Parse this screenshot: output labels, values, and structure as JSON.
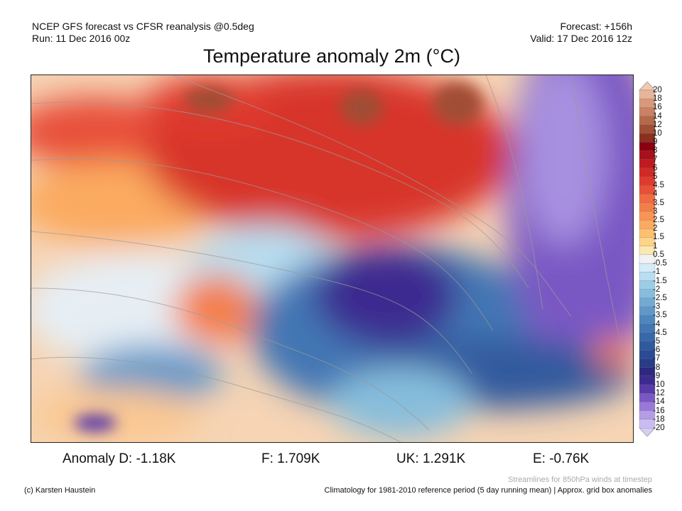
{
  "header": {
    "model_line": "NCEP GFS forecast vs CFSR reanalysis @0.5deg",
    "run_line": "Run: 11 Dec 2016 00z",
    "forecast_line": "Forecast: +156h",
    "valid_line": "Valid: 17 Dec 2016 12z",
    "title": "Temperature anomaly 2m (°C)"
  },
  "colorbar": {
    "labels": [
      "20",
      "18",
      "16",
      "14",
      "12",
      "10",
      "9",
      "8",
      "7",
      "6",
      "5",
      "4.5",
      "4",
      "3.5",
      "3",
      "2.5",
      "2",
      "1.5",
      "1",
      "0.5",
      "-0.5",
      "-1",
      "-1.5",
      "-2",
      "-2.5",
      "-3",
      "-3.5",
      "-4",
      "-4.5",
      "-5",
      "-6",
      "-7",
      "-8",
      "-9",
      "-10",
      "-12",
      "-14",
      "-16",
      "-18",
      "-20"
    ],
    "colors": [
      "#e8b49a",
      "#d9987a",
      "#c98263",
      "#b5694a",
      "#a04e35",
      "#8a3020",
      "#8b0010",
      "#a8101a",
      "#c01a20",
      "#d02a25",
      "#e03a2e",
      "#e85038",
      "#f06a42",
      "#f47e4a",
      "#f89456",
      "#fbaa60",
      "#fdc070",
      "#fdd48a",
      "#fbe8b0",
      "#f2f2f2",
      "#d4ecf8",
      "#b8def0",
      "#9ccde6",
      "#86bddc",
      "#72aad2",
      "#6098c8",
      "#4e86be",
      "#4276b4",
      "#3868aa",
      "#305a9e",
      "#2a4c94",
      "#283c88",
      "#2e2880",
      "#3c2a90",
      "#5a3aa8",
      "#7a58c4",
      "#9878d8",
      "#b49ce6",
      "#cabcf0"
    ],
    "top_arrow_color": "#f2c8b0",
    "bottom_arrow_color": "#d8ccf6"
  },
  "anomalies": {
    "d": "Anomaly D: -1.18K",
    "f": "F: 1.709K",
    "uk": "UK: 1.291K",
    "e": "E: -0.76K"
  },
  "footer": {
    "credit": "(c) Karsten Haustein",
    "streamlines": "Streamlines for 850hPa winds at timestep",
    "climatology": "Climatology for 1981-2010 reference period (5 day running mean) | Approx. grid box anomalies"
  }
}
